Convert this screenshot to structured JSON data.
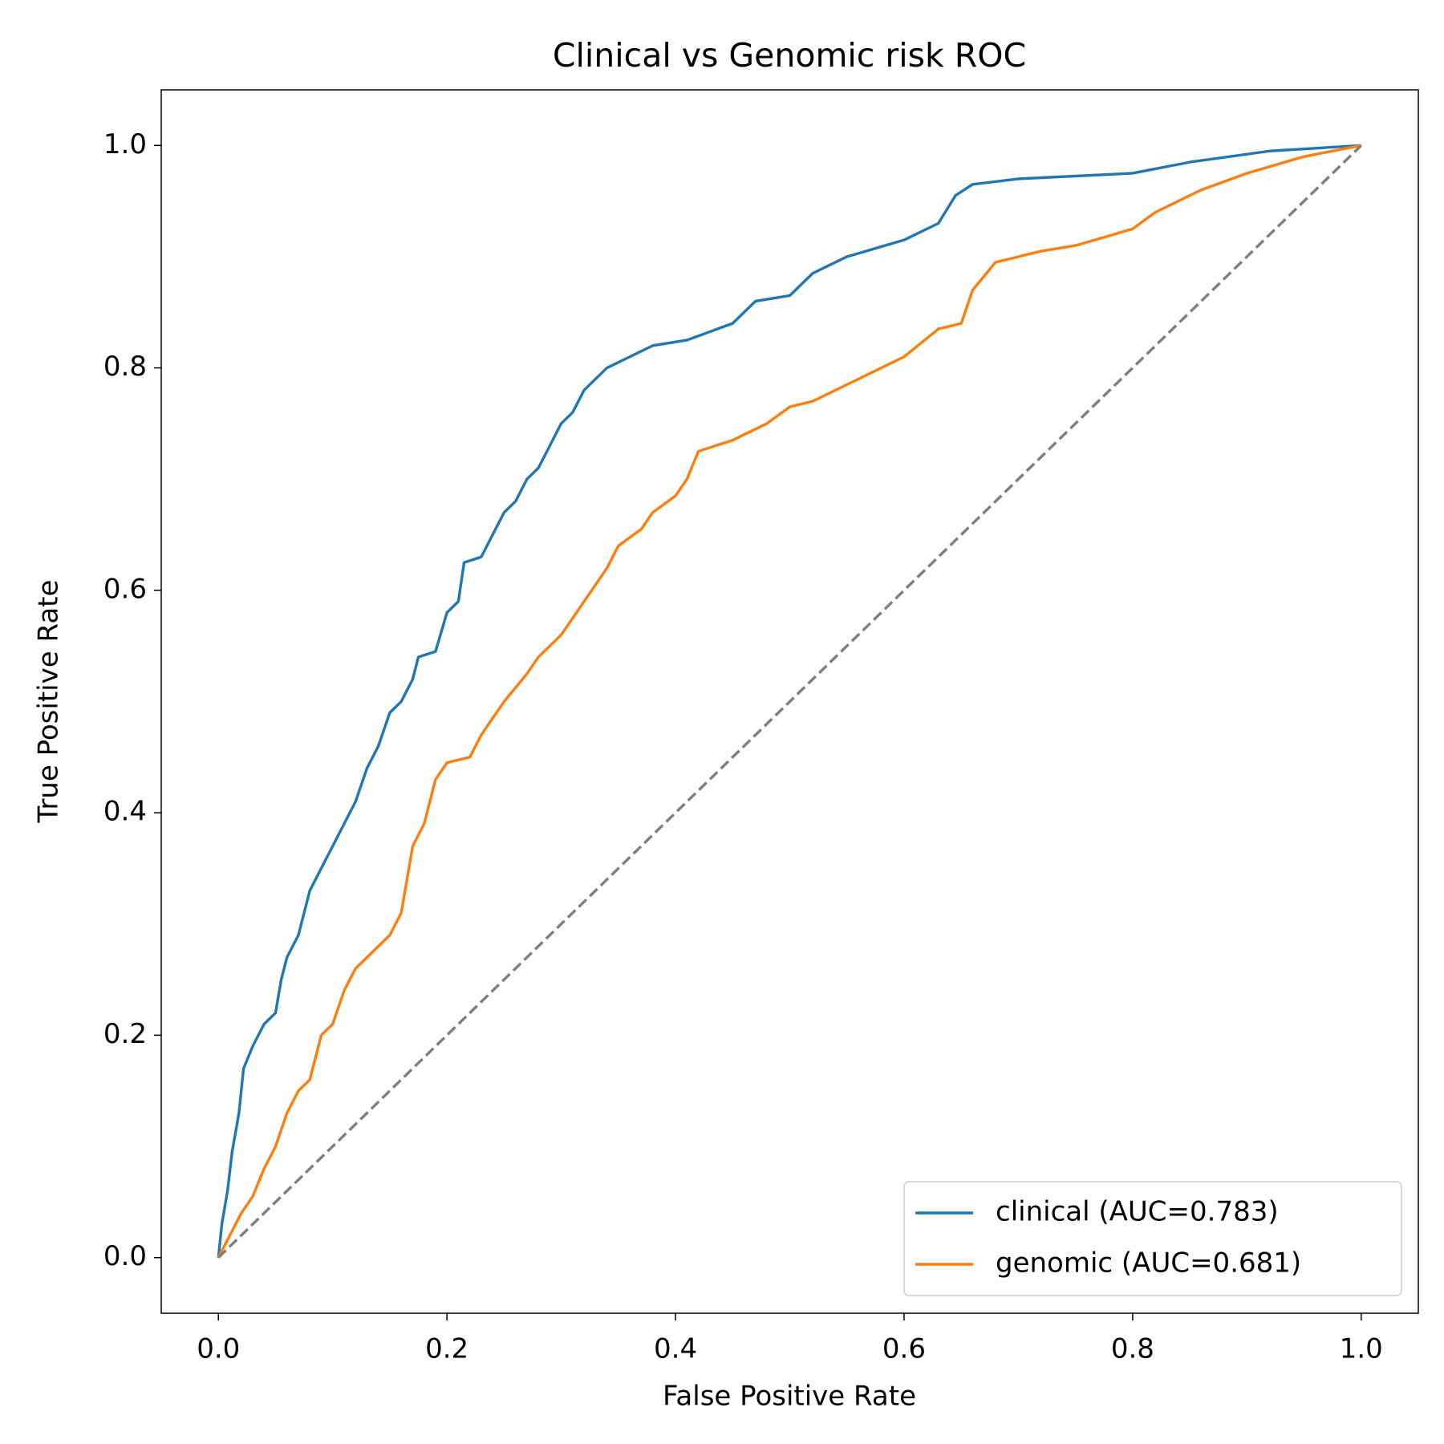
{
  "chart_data": {
    "type": "line",
    "title": "Clinical vs Genomic risk ROC",
    "xlabel": "False Positive Rate",
    "ylabel": "True Positive Rate",
    "xlim": [
      -0.05,
      1.05
    ],
    "ylim": [
      -0.05,
      1.05
    ],
    "xticks": [
      {
        "value": 0,
        "label": "0.0"
      },
      0.2,
      0.4,
      0.6,
      0.8,
      {
        "value": 1,
        "label": "1.0"
      }
    ],
    "yticks": [
      {
        "value": 0,
        "label": "0.0"
      },
      0.2,
      0.4,
      0.6,
      0.8,
      {
        "value": 1,
        "label": "1.0"
      }
    ],
    "grid": false,
    "legend": "lower right",
    "series": [
      {
        "name": "clinical (AUC=0.783)",
        "color": "#1f77b4",
        "x": [
          0,
          0.003,
          0.008,
          0.012,
          0.018,
          0.022,
          0.03,
          0.04,
          0.05,
          0.055,
          0.06,
          0.07,
          0.075,
          0.08,
          0.09,
          0.1,
          0.11,
          0.12,
          0.13,
          0.14,
          0.15,
          0.16,
          0.17,
          0.175,
          0.19,
          0.2,
          0.21,
          0.215,
          0.23,
          0.24,
          0.25,
          0.26,
          0.27,
          0.28,
          0.29,
          0.3,
          0.31,
          0.32,
          0.34,
          0.36,
          0.38,
          0.41,
          0.45,
          0.47,
          0.5,
          0.52,
          0.55,
          0.6,
          0.63,
          0.645,
          0.66,
          0.7,
          0.8,
          0.85,
          0.92,
          1
        ],
        "values": [
          0,
          0.03,
          0.06,
          0.095,
          0.13,
          0.17,
          0.19,
          0.21,
          0.22,
          0.25,
          0.27,
          0.29,
          0.31,
          0.33,
          0.35,
          0.37,
          0.39,
          0.41,
          0.44,
          0.46,
          0.49,
          0.5,
          0.52,
          0.54,
          0.545,
          0.58,
          0.59,
          0.625,
          0.63,
          0.65,
          0.67,
          0.68,
          0.7,
          0.71,
          0.73,
          0.75,
          0.76,
          0.78,
          0.8,
          0.81,
          0.82,
          0.825,
          0.84,
          0.86,
          0.865,
          0.885,
          0.9,
          0.915,
          0.93,
          0.955,
          0.965,
          0.97,
          0.975,
          0.985,
          0.995,
          1
        ]
      },
      {
        "name": "genomic (AUC=0.681)",
        "color": "#ff7f0e",
        "x": [
          0,
          0.01,
          0.02,
          0.03,
          0.04,
          0.05,
          0.06,
          0.07,
          0.08,
          0.09,
          0.1,
          0.11,
          0.12,
          0.13,
          0.15,
          0.16,
          0.165,
          0.17,
          0.18,
          0.19,
          0.2,
          0.22,
          0.23,
          0.25,
          0.27,
          0.28,
          0.3,
          0.32,
          0.34,
          0.35,
          0.37,
          0.38,
          0.4,
          0.41,
          0.42,
          0.45,
          0.48,
          0.5,
          0.52,
          0.55,
          0.6,
          0.63,
          0.65,
          0.66,
          0.68,
          0.72,
          0.75,
          0.8,
          0.82,
          0.86,
          0.9,
          0.95,
          1
        ],
        "values": [
          0,
          0.02,
          0.04,
          0.055,
          0.08,
          0.1,
          0.13,
          0.15,
          0.16,
          0.2,
          0.21,
          0.24,
          0.26,
          0.27,
          0.29,
          0.31,
          0.34,
          0.37,
          0.39,
          0.43,
          0.445,
          0.45,
          0.47,
          0.5,
          0.525,
          0.54,
          0.56,
          0.59,
          0.62,
          0.64,
          0.655,
          0.67,
          0.685,
          0.7,
          0.725,
          0.735,
          0.75,
          0.765,
          0.77,
          0.785,
          0.81,
          0.835,
          0.84,
          0.87,
          0.895,
          0.905,
          0.91,
          0.925,
          0.94,
          0.96,
          0.975,
          0.99,
          1
        ]
      }
    ],
    "diagonal": {
      "x": [
        0,
        1
      ],
      "values": [
        0,
        1
      ],
      "color": "#7f7f7f"
    }
  }
}
